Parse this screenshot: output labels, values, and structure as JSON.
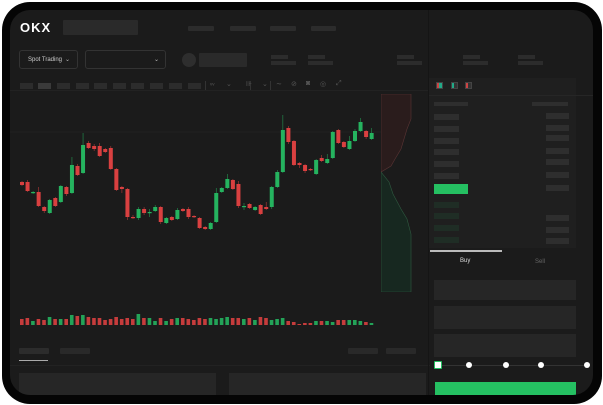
{
  "header": {
    "logo": "OKX",
    "market_dropdown": "Spot Trading"
  },
  "order_form": {
    "tabs": [
      {
        "label": "Buy",
        "active": true
      },
      {
        "label": "Sell",
        "active": false
      }
    ],
    "slider_value_percent": 0,
    "slider_stops": [
      0,
      25,
      50,
      75,
      100
    ]
  },
  "colors": {
    "up": "#25b35f",
    "down": "#d94040",
    "background": "#1b1b1b",
    "accent": "#25c062"
  },
  "icons": [
    "chevron-down-icon",
    "layout-both-icon",
    "layout-bids-icon",
    "layout-asks-icon",
    "line-icon",
    "draw-icon",
    "camera-icon",
    "settings-icon",
    "fullscreen-icon"
  ],
  "chart_data": {
    "type": "candlestick",
    "fields": [
      "open",
      "high",
      "low",
      "close"
    ],
    "candles": [
      [
        68,
        69,
        64,
        65
      ],
      [
        68,
        70,
        58,
        59
      ],
      [
        57,
        59,
        56,
        58
      ],
      [
        58,
        63,
        43,
        44
      ],
      [
        43,
        44,
        37,
        39
      ],
      [
        37,
        51,
        36,
        50
      ],
      [
        52,
        53,
        43,
        44
      ],
      [
        48,
        65,
        47,
        64
      ],
      [
        63,
        64,
        54,
        56
      ],
      [
        57,
        93,
        56,
        85
      ],
      [
        84,
        86,
        74,
        75
      ],
      [
        77,
        117,
        76,
        105
      ],
      [
        107,
        109,
        101,
        102
      ],
      [
        104,
        106,
        99,
        101
      ],
      [
        104,
        107,
        93,
        94
      ],
      [
        101,
        102,
        97,
        98
      ],
      [
        102,
        104,
        80,
        81
      ],
      [
        81,
        82,
        59,
        60
      ],
      [
        63,
        64,
        57,
        61
      ],
      [
        61,
        62,
        30,
        33
      ],
      [
        33,
        35,
        31,
        32
      ],
      [
        32,
        43,
        30,
        41
      ],
      [
        41,
        43,
        35,
        37
      ],
      [
        37,
        41,
        33,
        38
      ],
      [
        39,
        45,
        38,
        43
      ],
      [
        43,
        44,
        26,
        28
      ],
      [
        27,
        33,
        26,
        32
      ],
      [
        33,
        34,
        29,
        30
      ],
      [
        31,
        42,
        30,
        40
      ],
      [
        41,
        42,
        38,
        39
      ],
      [
        41,
        43,
        31,
        33
      ],
      [
        34,
        35,
        32,
        33
      ],
      [
        32,
        33,
        21,
        22
      ],
      [
        23,
        24,
        20,
        21
      ],
      [
        21,
        28,
        20,
        27
      ],
      [
        28,
        62,
        27,
        57
      ],
      [
        58,
        63,
        57,
        62
      ],
      [
        62,
        76,
        61,
        71
      ],
      [
        70,
        71,
        60,
        61
      ],
      [
        66,
        69,
        42,
        44
      ],
      [
        43,
        47,
        40,
        44
      ],
      [
        46,
        47,
        41,
        42
      ],
      [
        40,
        44,
        39,
        43
      ],
      [
        45,
        46,
        35,
        36
      ],
      [
        43,
        48,
        40,
        41
      ],
      [
        43,
        64,
        41,
        63
      ],
      [
        63,
        80,
        62,
        78
      ],
      [
        78,
        135,
        77,
        120
      ],
      [
        122,
        124,
        106,
        108
      ],
      [
        109,
        110,
        84,
        85
      ],
      [
        87,
        88,
        82,
        85
      ],
      [
        85,
        86,
        77,
        79
      ],
      [
        81,
        82,
        79,
        80
      ],
      [
        76,
        91,
        75,
        90
      ],
      [
        92,
        95,
        88,
        89
      ],
      [
        87,
        96,
        86,
        91
      ],
      [
        92,
        119,
        91,
        118
      ],
      [
        120,
        121,
        106,
        107
      ],
      [
        108,
        109,
        102,
        103
      ],
      [
        101,
        114,
        100,
        109
      ],
      [
        109,
        121,
        108,
        119
      ],
      [
        119,
        132,
        118,
        128
      ],
      [
        119,
        120,
        111,
        113
      ],
      [
        111,
        122,
        110,
        117
      ]
    ],
    "volumes": [
      6,
      7,
      4,
      6,
      5,
      8,
      6,
      6,
      6,
      10,
      9,
      10,
      8,
      7,
      7,
      5,
      6,
      8,
      6,
      7,
      6,
      11,
      7,
      7,
      4,
      7,
      4,
      6,
      7,
      7,
      6,
      5,
      7,
      6,
      7,
      6,
      7,
      8,
      7,
      7,
      6,
      7,
      5,
      8,
      7,
      5,
      6,
      7,
      4,
      3,
      1,
      2,
      2,
      4,
      4,
      4,
      3,
      5,
      5,
      5,
      5,
      4,
      3,
      2
    ],
    "grid": false
  }
}
